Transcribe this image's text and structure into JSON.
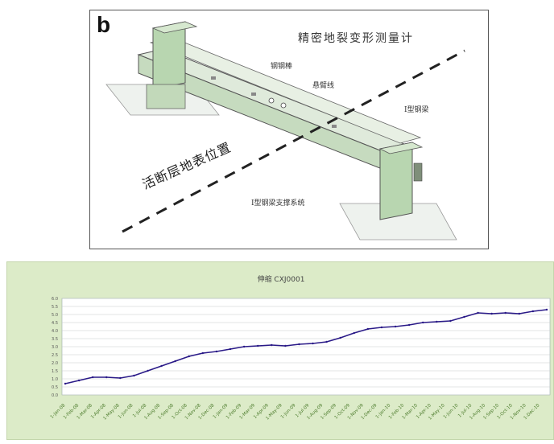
{
  "diagram": {
    "panel_letter": "b",
    "title": "精密地裂变形测量计",
    "labels": {
      "rod": "钢钢棒",
      "wire": "悬臂线",
      "beam": "I型钢梁",
      "support": "I型钢梁支撑系统",
      "fault": "活断层地表位置"
    },
    "colors": {
      "beam": "#cfe0c8",
      "block": "#b8d6b0",
      "line": "#333333"
    }
  },
  "chart_data": {
    "type": "line",
    "title": "伸缩 CXJ0001",
    "ylabel": "",
    "y_tick_labels": [
      "0.0",
      "0.5",
      "1.0",
      "1.5",
      "2.0",
      "2.5",
      "3.0",
      "3.5",
      "4.0",
      "4.5",
      "5.0",
      "5.5",
      "6.0"
    ],
    "ylim": [
      0,
      6
    ],
    "grid": true,
    "series_color": "#2a1a88",
    "x_tick_labels": [
      "1-Jan-08",
      "1-Feb-08",
      "1-Mar-08",
      "1-Apr-08",
      "1-May-08",
      "1-Jun-08",
      "1-Jul-08",
      "1-Aug-08",
      "1-Sep-08",
      "1-Oct-08",
      "1-Nov-08",
      "1-Dec-08",
      "1-Jan-09",
      "1-Feb-09",
      "1-Mar-09",
      "1-Apr-09",
      "1-May-09",
      "1-Jun-09",
      "1-Jul-09",
      "1-Aug-09",
      "1-Sep-09",
      "1-Oct-09",
      "1-Nov-09",
      "1-Dec-09",
      "1-Jan-10",
      "1-Feb-10",
      "1-Mar-10",
      "1-Apr-10",
      "1-May-10",
      "1-Jun-10",
      "1-Jul-10",
      "1-Aug-10",
      "1-Sep-10",
      "1-Oct-10",
      "1-Nov-10",
      "1-Dec-10"
    ],
    "series": [
      {
        "x": [
          "2008-01",
          "2008-02",
          "2008-03",
          "2008-04",
          "2008-05",
          "2008-06",
          "2008-07",
          "2008-08",
          "2008-09",
          "2008-10",
          "2008-11",
          "2008-12",
          "2009-01",
          "2009-02",
          "2009-03",
          "2009-04",
          "2009-05",
          "2009-06",
          "2009-07",
          "2009-08",
          "2009-09",
          "2009-10",
          "2009-11",
          "2009-12",
          "2010-01",
          "2010-02",
          "2010-03",
          "2010-04",
          "2010-05",
          "2010-06",
          "2010-07",
          "2010-08",
          "2010-09",
          "2010-10",
          "2010-11",
          "2010-12"
        ],
        "values": [
          0.7,
          0.9,
          1.1,
          1.1,
          1.05,
          1.2,
          1.5,
          1.8,
          2.1,
          2.4,
          2.6,
          2.7,
          2.85,
          3.0,
          3.05,
          3.1,
          3.05,
          3.15,
          3.2,
          3.3,
          3.55,
          3.85,
          4.1,
          4.2,
          4.25,
          4.35,
          4.5,
          4.55,
          4.6,
          4.85,
          5.1,
          5.05,
          5.1,
          5.05,
          5.2,
          5.3
        ]
      }
    ]
  }
}
